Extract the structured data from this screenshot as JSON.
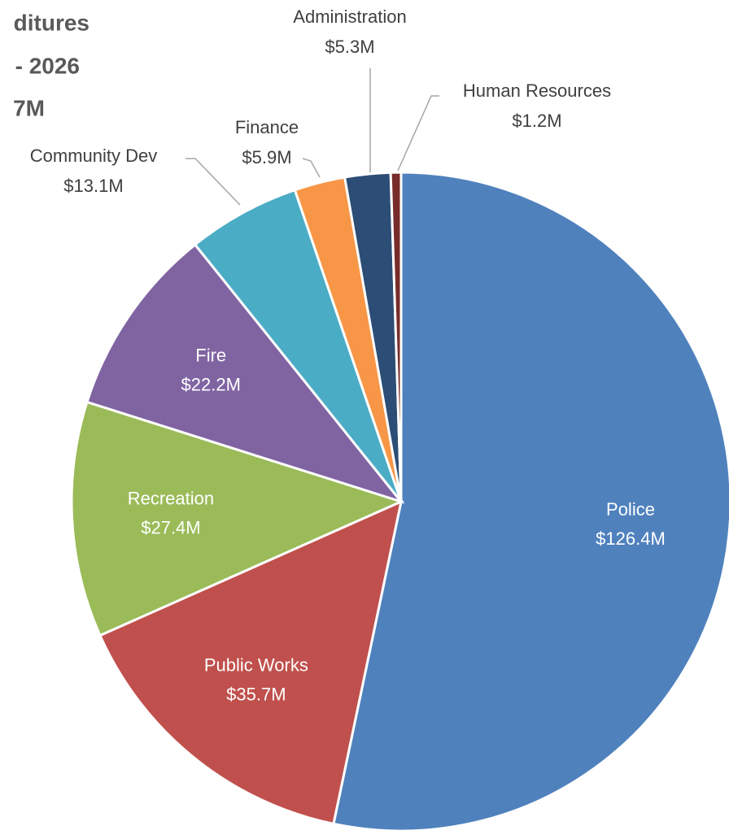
{
  "chart_data": {
    "type": "pie",
    "title": [
      "ditures",
      "- 2026",
      "7M"
    ],
    "categories": [
      "Police",
      "Public Works",
      "Recreation",
      "Fire",
      "Community Dev",
      "Finance",
      "Administration",
      "Human Resources"
    ],
    "values": [
      126.4,
      35.7,
      27.4,
      22.2,
      13.1,
      5.9,
      5.3,
      1.2
    ],
    "value_labels": [
      "$126.4M",
      "$35.7M",
      "$27.4M",
      "$22.2M",
      "$13.1M",
      "$5.9M",
      "$5.3M",
      "$1.2M"
    ],
    "colors": [
      "#4f81bd",
      "#c0504d",
      "#9bbb59",
      "#8064a2",
      "#4bacc6",
      "#f79646",
      "#2c4d75",
      "#772c2a"
    ]
  }
}
